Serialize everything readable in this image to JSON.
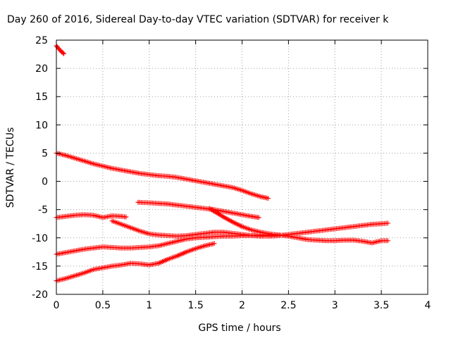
{
  "chart_data": {
    "type": "scatter",
    "title": "Day 260 of 2016, Sidereal Day-to-day VTEC variation (SDTVAR) for receiver k",
    "xlabel": "GPS time / hours",
    "ylabel": "SDTVAR / TECUs",
    "xlim": [
      0,
      4
    ],
    "ylim": [
      -20,
      25
    ],
    "xticks": [
      "0",
      "0.5",
      "1",
      "1.5",
      "2",
      "2.5",
      "3",
      "3.5",
      "4"
    ],
    "yticks": [
      "-20",
      "-15",
      "-10",
      "-5",
      "0",
      "5",
      "10",
      "15",
      "20",
      "25"
    ],
    "grid": true,
    "marker": "+",
    "color": "#ff0000",
    "series": [
      {
        "x": [
          0.0,
          0.02,
          0.04,
          0.06,
          0.08
        ],
        "y": [
          24.0,
          23.6,
          23.2,
          22.9,
          22.6
        ]
      },
      {
        "x": [
          0.0,
          0.1,
          0.2,
          0.3,
          0.4,
          0.5,
          0.6,
          0.7,
          0.8,
          0.9,
          1.0,
          1.1,
          1.2,
          1.3,
          1.4,
          1.5,
          1.6,
          1.7,
          1.8,
          1.9,
          2.0,
          2.1,
          2.2,
          2.28
        ],
        "y": [
          5.0,
          4.6,
          4.1,
          3.6,
          3.1,
          2.7,
          2.3,
          2.0,
          1.7,
          1.4,
          1.2,
          1.0,
          0.9,
          0.7,
          0.4,
          0.1,
          -0.2,
          -0.5,
          -0.8,
          -1.1,
          -1.6,
          -2.2,
          -2.7,
          -3.0
        ]
      },
      {
        "x": [
          0.88,
          1.0,
          1.1,
          1.2,
          1.3,
          1.4,
          1.5,
          1.6,
          1.7,
          1.8,
          1.9,
          2.0,
          2.1,
          2.18
        ],
        "y": [
          -3.7,
          -3.8,
          -3.9,
          -4.0,
          -4.2,
          -4.4,
          -4.6,
          -4.8,
          -5.0,
          -5.3,
          -5.6,
          -5.9,
          -6.2,
          -6.4
        ]
      },
      {
        "x": [
          0.0,
          0.1,
          0.2,
          0.3,
          0.4,
          0.5,
          0.6,
          0.7,
          0.75
        ],
        "y": [
          -6.4,
          -6.2,
          -6.0,
          -5.9,
          -6.0,
          -6.4,
          -6.1,
          -6.2,
          -6.3
        ]
      },
      {
        "x": [
          0.6,
          0.7,
          0.8,
          0.9,
          1.0,
          1.1,
          1.2,
          1.3,
          1.4,
          1.5,
          1.6,
          1.7,
          1.8,
          1.9,
          2.0,
          2.1,
          2.2,
          2.3,
          2.4,
          2.5,
          2.6,
          2.7,
          2.8,
          2.9,
          3.0,
          3.1,
          3.2,
          3.3,
          3.4,
          3.5,
          3.57
        ],
        "y": [
          -7.0,
          -7.6,
          -8.2,
          -8.8,
          -9.3,
          -9.5,
          -9.6,
          -9.7,
          -9.6,
          -9.4,
          -9.2,
          -9.0,
          -9.0,
          -9.2,
          -9.4,
          -9.6,
          -9.7,
          -9.7,
          -9.6,
          -9.4,
          -9.2,
          -9.0,
          -8.8,
          -8.6,
          -8.4,
          -8.2,
          -8.0,
          -7.8,
          -7.6,
          -7.5,
          -7.4
        ]
      },
      {
        "x": [
          1.65,
          1.7,
          1.8,
          1.9,
          2.0,
          2.1,
          2.2,
          2.3,
          2.4,
          2.5,
          2.6,
          2.7,
          2.8,
          2.9,
          3.0,
          3.1,
          3.2,
          3.3,
          3.4,
          3.5,
          3.57
        ],
        "y": [
          -4.8,
          -5.3,
          -6.3,
          -7.2,
          -8.0,
          -8.6,
          -9.0,
          -9.3,
          -9.5,
          -9.7,
          -10.0,
          -10.3,
          -10.4,
          -10.5,
          -10.5,
          -10.4,
          -10.4,
          -10.6,
          -10.9,
          -10.5,
          -10.5
        ]
      },
      {
        "x": [
          0.0,
          0.1,
          0.2,
          0.3,
          0.4,
          0.5,
          0.6,
          0.7,
          0.8,
          0.9,
          1.0,
          1.1,
          1.2,
          1.3,
          1.4,
          1.5,
          1.6,
          1.7,
          1.8,
          1.9,
          2.0,
          2.1,
          2.2,
          2.3,
          2.4
        ],
        "y": [
          -12.9,
          -12.6,
          -12.3,
          -12.0,
          -11.8,
          -11.6,
          -11.7,
          -11.8,
          -11.8,
          -11.7,
          -11.6,
          -11.4,
          -11.0,
          -10.6,
          -10.2,
          -10.0,
          -9.9,
          -9.8,
          -9.7,
          -9.7,
          -9.6,
          -9.6,
          -9.5,
          -9.5,
          -9.5
        ]
      },
      {
        "x": [
          0.0,
          0.1,
          0.2,
          0.3,
          0.4,
          0.5,
          0.6,
          0.7,
          0.8,
          0.9,
          1.0,
          1.1,
          1.2,
          1.3,
          1.4,
          1.5,
          1.6,
          1.7
        ],
        "y": [
          -17.6,
          -17.2,
          -16.7,
          -16.2,
          -15.6,
          -15.3,
          -15.0,
          -14.8,
          -14.5,
          -14.6,
          -14.8,
          -14.5,
          -13.8,
          -13.2,
          -12.5,
          -11.9,
          -11.4,
          -11.0
        ]
      }
    ]
  }
}
